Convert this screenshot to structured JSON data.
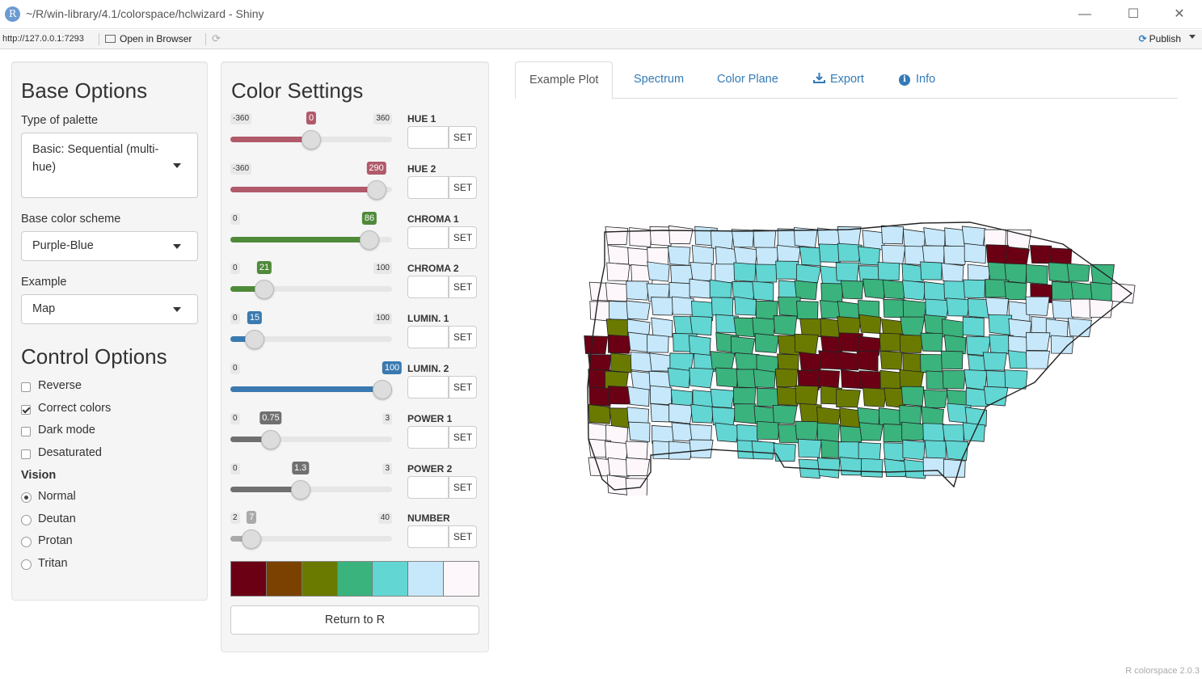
{
  "window": {
    "title": "~/R/win-library/4.1/colorspace/hclwizard - Shiny",
    "logo_letter": "R"
  },
  "toolbar": {
    "url": "http://127.0.0.1:7293",
    "open_browser": "Open in Browser",
    "publish": "Publish"
  },
  "base_options": {
    "heading": "Base Options",
    "palette_type_label": "Type of palette",
    "palette_type_value": "Basic: Sequential (multi-hue)",
    "scheme_label": "Base color scheme",
    "scheme_value": "Purple-Blue",
    "example_label": "Example",
    "example_value": "Map"
  },
  "control_options": {
    "heading": "Control Options",
    "checkboxes": [
      {
        "label": "Reverse",
        "checked": false
      },
      {
        "label": "Correct colors",
        "checked": true
      },
      {
        "label": "Dark mode",
        "checked": false
      },
      {
        "label": "Desaturated",
        "checked": false
      }
    ],
    "vision_label": "Vision",
    "vision_options": [
      {
        "label": "Normal",
        "selected": true
      },
      {
        "label": "Deutan",
        "selected": false
      },
      {
        "label": "Protan",
        "selected": false
      },
      {
        "label": "Tritan",
        "selected": false
      }
    ]
  },
  "color_settings": {
    "heading": "Color Settings",
    "set_label": "SET",
    "sliders": [
      {
        "label": "HUE 1",
        "min": -360,
        "max": 360,
        "value": 0,
        "min_text": "-360",
        "max_text": "360",
        "value_text": "0",
        "color": "#b05a6a"
      },
      {
        "label": "HUE 2",
        "min": -360,
        "max": 360,
        "value": 290,
        "min_text": "-360",
        "max_text": "",
        "value_text": "290",
        "color": "#b05a6a"
      },
      {
        "label": "CHROMA 1",
        "min": 0,
        "max": 100,
        "value": 86,
        "min_text": "0",
        "max_text": "",
        "value_text": "86",
        "color": "#4f8a3a"
      },
      {
        "label": "CHROMA 2",
        "min": 0,
        "max": 100,
        "value": 21,
        "min_text": "0",
        "max_text": "100",
        "value_text": "21",
        "color": "#4f8a3a"
      },
      {
        "label": "LUMIN. 1",
        "min": 0,
        "max": 100,
        "value": 15,
        "min_text": "0",
        "max_text": "100",
        "value_text": "15",
        "color": "#3a7ab0"
      },
      {
        "label": "LUMIN. 2",
        "min": 0,
        "max": 100,
        "value": 100,
        "min_text": "0",
        "max_text": "",
        "value_text": "100",
        "color": "#3a7ab0"
      },
      {
        "label": "POWER 1",
        "min": 0,
        "max": 3,
        "value": 0.75,
        "min_text": "0",
        "max_text": "3",
        "value_text": "0.75",
        "color": "#707070"
      },
      {
        "label": "POWER 2",
        "min": 0,
        "max": 3,
        "value": 1.3,
        "min_text": "0",
        "max_text": "3",
        "value_text": "1.3",
        "color": "#707070"
      },
      {
        "label": "NUMBER",
        "min": 2,
        "max": 40,
        "value": 7,
        "min_text": "2",
        "max_text": "40",
        "value_text": "7",
        "color": "#aaaaaa"
      }
    ],
    "palette": [
      "#6b0015",
      "#7a4100",
      "#6a7a00",
      "#3bb37d",
      "#62d6d3",
      "#c6e8fa",
      "#fdf7fc"
    ],
    "return_label": "Return to R"
  },
  "tabs": [
    {
      "label": "Example Plot",
      "active": true
    },
    {
      "label": "Spectrum",
      "active": false
    },
    {
      "label": "Color Plane",
      "active": false
    },
    {
      "label": "Export",
      "active": false
    },
    {
      "label": "Info",
      "active": false
    }
  ],
  "footer": "R colorspace 2.0.3"
}
